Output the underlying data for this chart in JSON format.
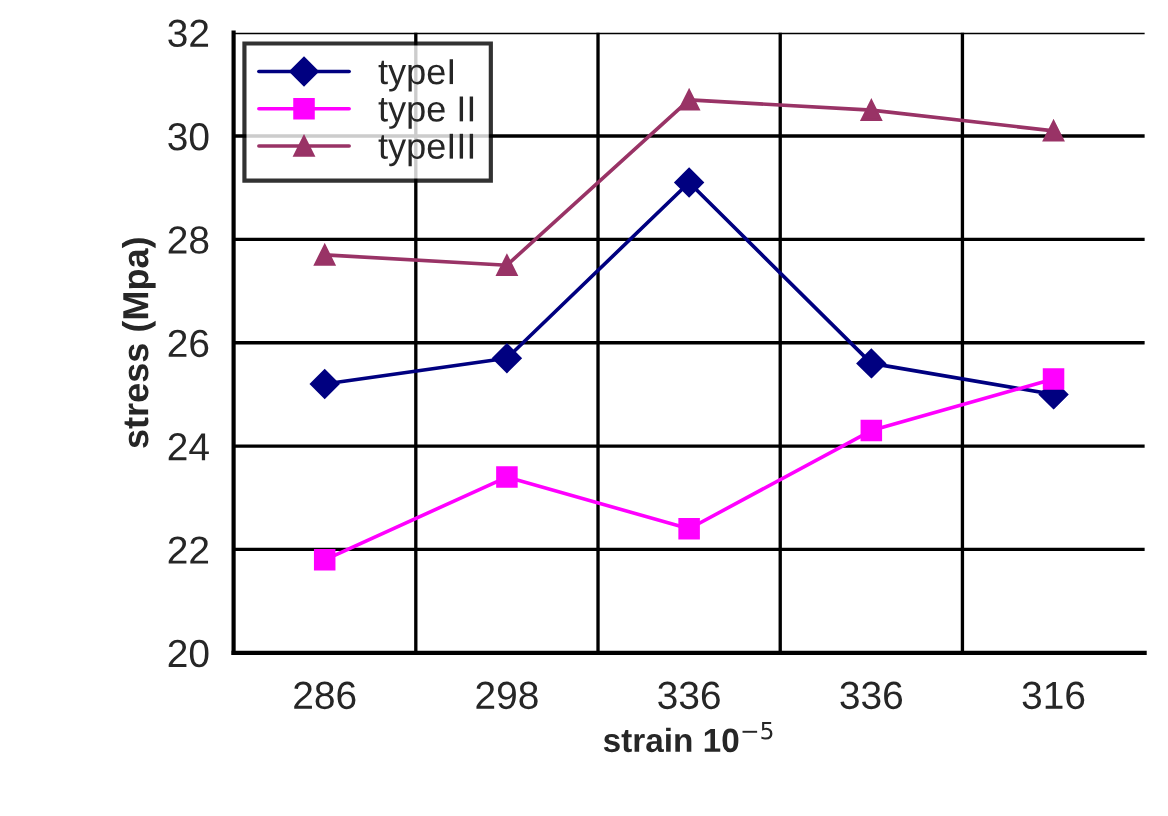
{
  "chart_data": {
    "type": "line",
    "xlabel": "strain 10$^{−5}$",
    "ylabel": "stress (Mpa)",
    "categories": [
      "286",
      "298",
      "336",
      "336",
      "316"
    ],
    "series": [
      {
        "name": "typeI",
        "color": "#000080",
        "marker": "diamond",
        "values": [
          25.2,
          25.7,
          29.1,
          25.6,
          25.0
        ]
      },
      {
        "name": "type II",
        "color": "#ff00ff",
        "marker": "square",
        "values": [
          21.8,
          23.4,
          22.4,
          24.3,
          25.3
        ]
      },
      {
        "name": "typeIII",
        "color": "#993366",
        "marker": "triangle",
        "values": [
          27.7,
          27.5,
          30.7,
          30.5,
          30.1
        ]
      }
    ],
    "ylim": [
      20,
      32
    ],
    "yticks": [
      20,
      22,
      24,
      26,
      28,
      30,
      32
    ],
    "grid": true,
    "legend": "top left",
    "line_style": "solid"
  }
}
